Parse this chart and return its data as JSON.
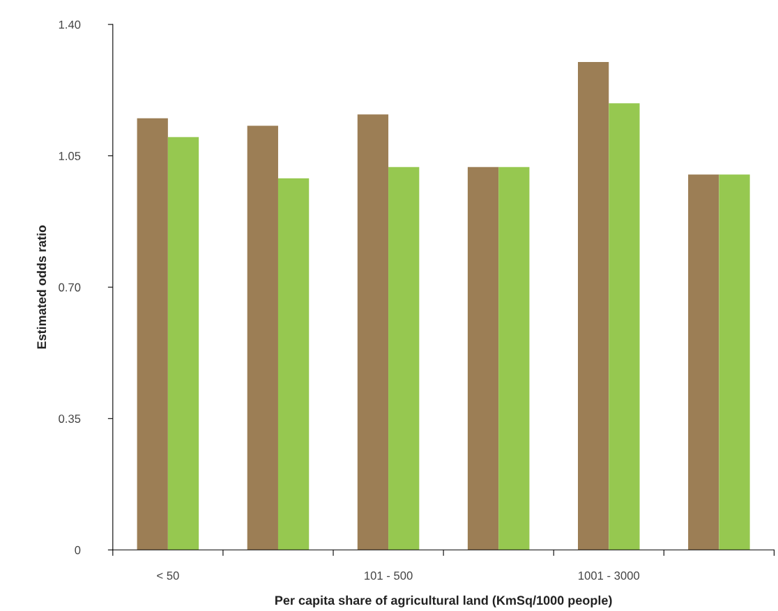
{
  "chart_data": {
    "type": "bar",
    "xlabel": "Per capita share of agricultural land (KmSq/1000 people)",
    "ylabel": "Estimated odds ratio",
    "categories": [
      "< 50",
      null,
      "101 - 500",
      null,
      "1001 - 3000",
      null
    ],
    "series": [
      {
        "color": "#9c7e55",
        "values": [
          1.15,
          1.13,
          1.16,
          1.02,
          1.3,
          1.0
        ]
      },
      {
        "color": "#96c850",
        "values": [
          1.1,
          0.99,
          1.02,
          1.02,
          1.19,
          1.0
        ]
      }
    ],
    "ylim": [
      0,
      1.4
    ],
    "yticks": [
      {
        "value": 0,
        "label": "0"
      },
      {
        "value": 0.35,
        "label": "0.35"
      },
      {
        "value": 0.7,
        "label": "0.70"
      },
      {
        "value": 1.05,
        "label": "1.05"
      },
      {
        "value": 1.4,
        "label": "1.40"
      }
    ],
    "grid": false,
    "legend": false
  }
}
